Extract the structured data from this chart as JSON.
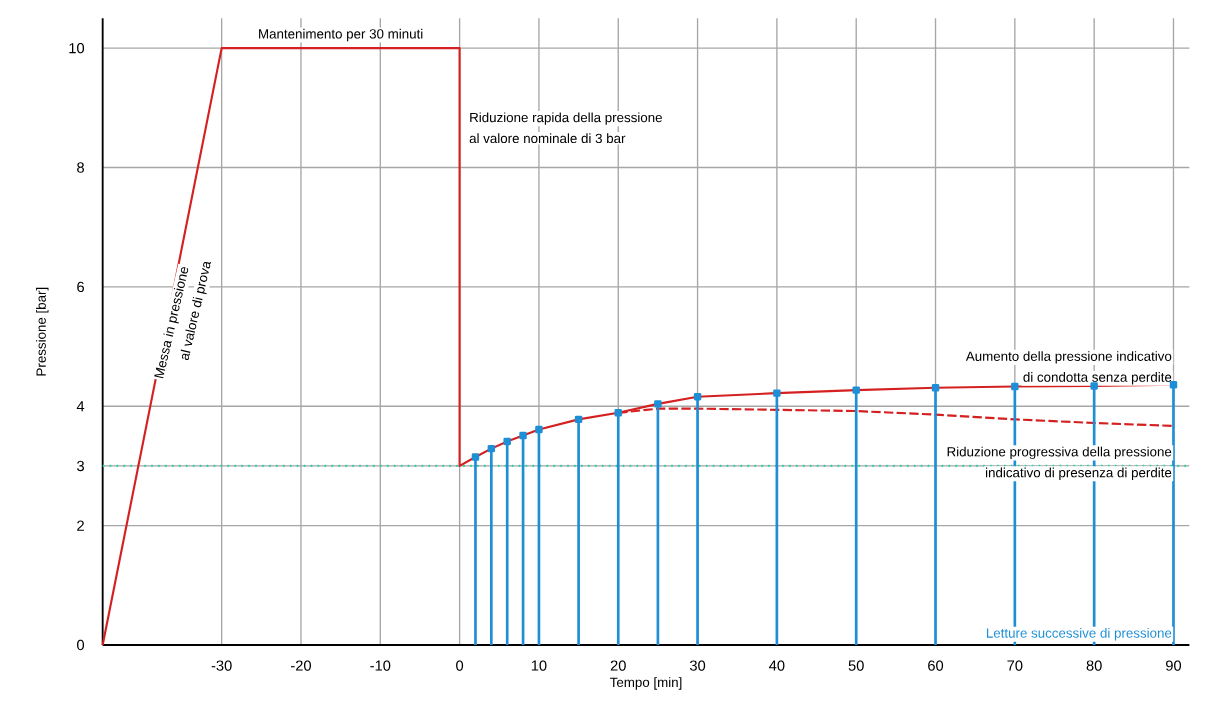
{
  "chart_data": {
    "type": "line",
    "xlabel": "Tempo [min]",
    "ylabel": "Pressione [bar]",
    "xlim": [
      -45,
      92
    ],
    "ylim": [
      0,
      10.5
    ],
    "xticks": [
      -30,
      -20,
      -10,
      0,
      10,
      20,
      30,
      40,
      50,
      60,
      70,
      80,
      90
    ],
    "yticks": [
      0,
      2,
      3,
      4,
      6,
      8,
      10
    ],
    "grid": true,
    "series": [
      {
        "color": "#d42020",
        "line_style": "solid",
        "x": [
          -45,
          -30,
          0,
          0,
          2,
          4,
          6,
          8,
          10,
          15,
          20,
          25,
          30,
          40,
          50,
          60,
          70,
          80,
          90
        ],
        "values": [
          0,
          10,
          10,
          3,
          3.15,
          3.29,
          3.41,
          3.51,
          3.61,
          3.78,
          3.89,
          4.04,
          4.16,
          4.22,
          4.27,
          4.31,
          4.33,
          4.34,
          4.36
        ]
      },
      {
        "color": "#d42020",
        "line_style": "dashed",
        "x": [
          20,
          25,
          30,
          40,
          50,
          60,
          70,
          80,
          90
        ],
        "values": [
          3.89,
          3.96,
          3.96,
          3.94,
          3.92,
          3.86,
          3.78,
          3.72,
          3.67
        ]
      },
      {
        "type": "lollipop",
        "color": "#1e8fd6",
        "marker": "square",
        "x": [
          2,
          4,
          6,
          8,
          10,
          15,
          20,
          25,
          30,
          40,
          50,
          60,
          70,
          80,
          90
        ],
        "values": [
          3.15,
          3.29,
          3.41,
          3.51,
          3.61,
          3.78,
          3.89,
          4.04,
          4.16,
          4.22,
          4.27,
          4.31,
          4.33,
          4.34,
          4.36
        ]
      }
    ],
    "ref_lines": [
      {
        "axis": "y",
        "value": 3,
        "color": "#22d3a6",
        "line_style": "dotted"
      }
    ],
    "annotations": [
      "Mantenimento per 30 minuti",
      "Riduzione rapida della pressione",
      "al valore nominale di 3 bar",
      "Aumento della pressione indicativo",
      "di condotta senza perdite",
      "Riduzione progressiva della pressione",
      "indicativo di presenza di perdite",
      "Letture successive di pressione",
      "Messa in pressione",
      "al valore di prova"
    ]
  }
}
